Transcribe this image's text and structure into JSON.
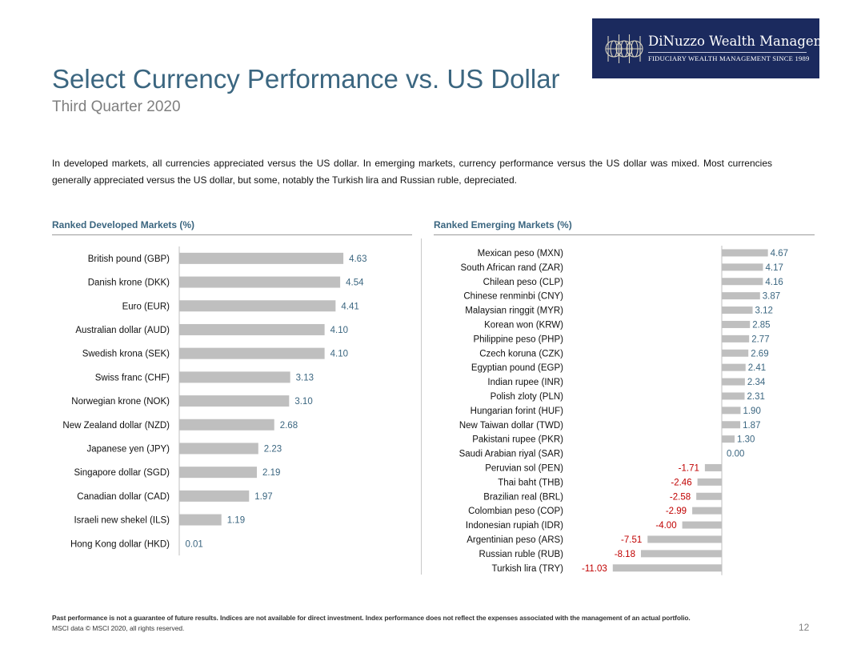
{
  "logo": {
    "name": "DiNuzzo Wealth Management",
    "tagline": "FIDUCIARY WEALTH MANAGEMENT SINCE 1989"
  },
  "header": {
    "title": "Select Currency Performance vs. US Dollar",
    "subtitle": "Third Quarter 2020"
  },
  "intro": "In developed markets, all currencies appreciated versus the US dollar. In emerging markets, currency performance versus the US dollar was mixed. Most currencies generally appreciated versus the US dollar, but some, notably the Turkish lira and Russian ruble, depreciated.",
  "colors": {
    "bar": "#bfbfbf",
    "positive_label": "#3b6680",
    "negative_label": "#c00000",
    "title": "#3b6680"
  },
  "chart_data": [
    {
      "type": "bar",
      "orientation": "horizontal",
      "title": "Ranked Developed Markets (%)",
      "categories": [
        "British pound (GBP)",
        "Danish krone (DKK)",
        "Euro (EUR)",
        "Australian dollar (AUD)",
        "Swedish krona (SEK)",
        "Swiss franc (CHF)",
        "Norwegian krone (NOK)",
        "New Zealand dollar (NZD)",
        "Japanese yen (JPY)",
        "Singapore dollar (SGD)",
        "Canadian dollar (CAD)",
        "Israeli new shekel (ILS)",
        "Hong Kong dollar (HKD)"
      ],
      "values": [
        4.63,
        4.54,
        4.41,
        4.1,
        4.1,
        3.13,
        3.1,
        2.68,
        2.23,
        2.19,
        1.97,
        1.19,
        0.01
      ],
      "labels": [
        "4.63",
        "4.54",
        "4.41",
        "4.10",
        "4.10",
        "3.13",
        "3.10",
        "2.68",
        "2.23",
        "2.19",
        "1.97",
        "1.19",
        "0.01"
      ],
      "xlim": [
        0,
        5.5
      ]
    },
    {
      "type": "bar",
      "orientation": "horizontal",
      "title": "Ranked Emerging Markets (%)",
      "categories": [
        "Mexican peso (MXN)",
        "South African rand (ZAR)",
        "Chilean peso (CLP)",
        "Chinese renminbi (CNY)",
        "Malaysian ringgit (MYR)",
        "Korean won (KRW)",
        "Philippine peso (PHP)",
        "Czech koruna (CZK)",
        "Egyptian pound (EGP)",
        "Indian rupee (INR)",
        "Polish zloty (PLN)",
        "Hungarian forint (HUF)",
        "New Taiwan dollar (TWD)",
        "Pakistani rupee (PKR)",
        "Saudi Arabian riyal (SAR)",
        "Peruvian sol (PEN)",
        "Thai baht (THB)",
        "Brazilian real (BRL)",
        "Colombian peso (COP)",
        "Indonesian rupiah (IDR)",
        "Argentinian peso (ARS)",
        "Russian ruble (RUB)",
        "Turkish lira (TRY)"
      ],
      "values": [
        4.67,
        4.17,
        4.16,
        3.87,
        3.12,
        2.85,
        2.77,
        2.69,
        2.41,
        2.34,
        2.31,
        1.9,
        1.87,
        1.3,
        0.0,
        -1.71,
        -2.46,
        -2.58,
        -2.99,
        -4.0,
        -7.51,
        -8.18,
        -11.03
      ],
      "labels": [
        "4.67",
        "4.17",
        "4.16",
        "3.87",
        "3.12",
        "2.85",
        "2.77",
        "2.69",
        "2.41",
        "2.34",
        "2.31",
        "1.90",
        "1.87",
        "1.30",
        "0.00",
        "-1.71",
        "-2.46",
        "-2.58",
        "-2.99",
        "-4.00",
        "-7.51",
        "-8.18",
        "-11.03"
      ],
      "xlim": [
        -12.5,
        5.4
      ]
    }
  ],
  "footer": {
    "disclaimer": "Past performance is not a guarantee of future results. Indices are not available for direct investment. Index performance does not reflect the expenses associated with the management of an actual portfolio.",
    "source": "MSCI data © MSCI 2020, all rights reserved.",
    "page": "12"
  }
}
